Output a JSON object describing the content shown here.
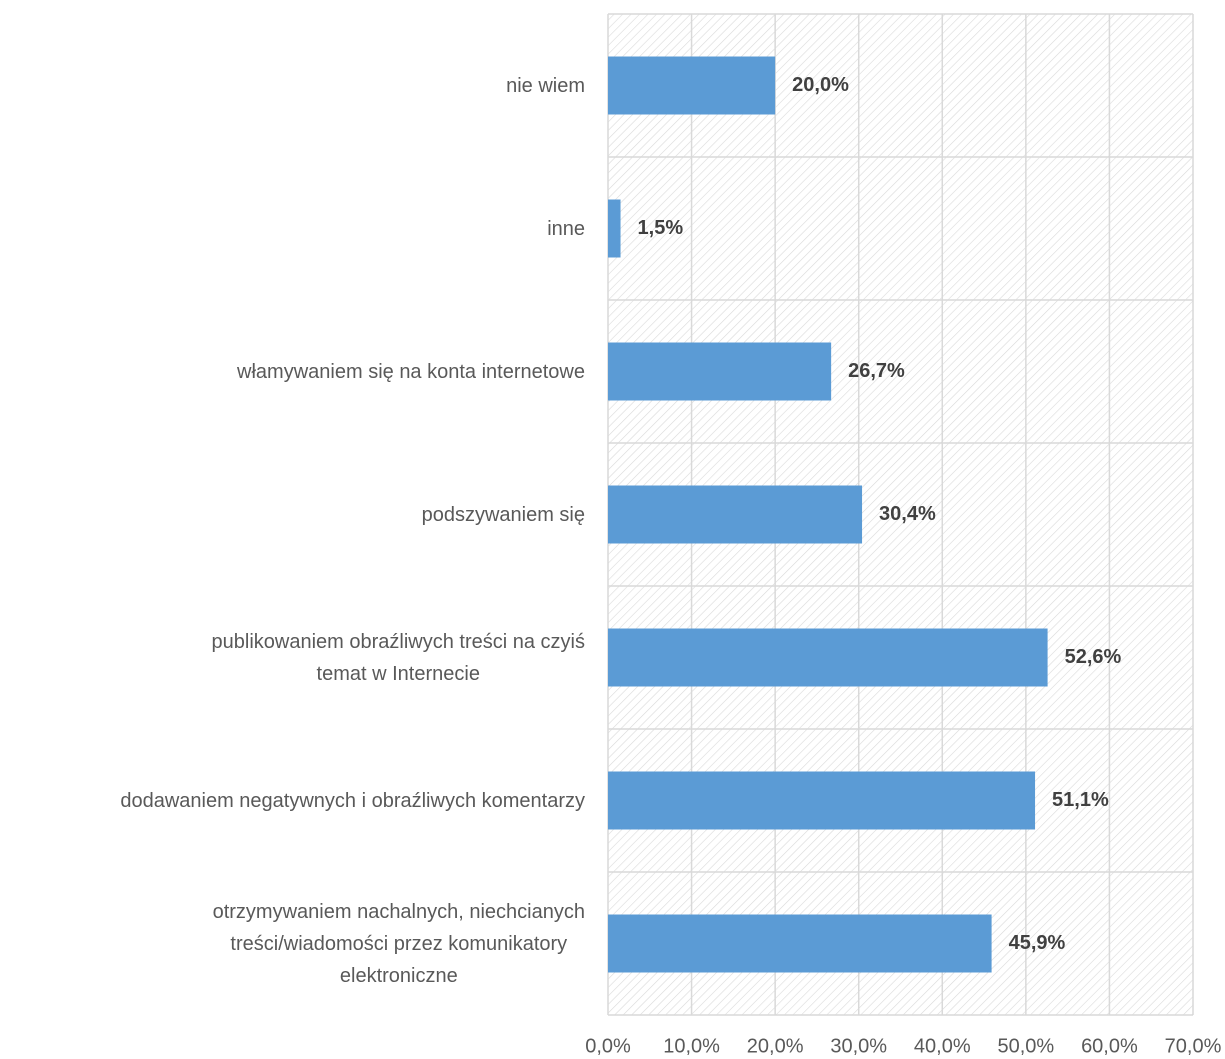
{
  "chart_data": {
    "type": "bar",
    "orientation": "horizontal",
    "categories": [
      "nie wiem",
      "inne",
      "włamywaniem się na konta internetowe",
      "podszywaniem się",
      "publikowaniem obraźliwych treści na czyiś\ntemat w Internecie",
      "dodawaniem negatywnych i obraźliwych komentarzy",
      "otrzymywaniem nachalnych, niechcianych\ntreści/wiadomości przez komunikatory\nelektroniczne"
    ],
    "values": [
      20.0,
      1.5,
      26.7,
      30.4,
      52.6,
      51.1,
      45.9
    ],
    "value_labels": [
      "20,0%",
      "1,5%",
      "26,7%",
      "30,4%",
      "52,6%",
      "51,1%",
      "45,9%"
    ],
    "color": "#5b9bd5",
    "xlim": [
      0,
      70
    ],
    "xticks": [
      {
        "value": 0,
        "label": "0,0%"
      },
      {
        "value": 10,
        "label": "10,0%"
      },
      {
        "value": 20,
        "label": "20,0%"
      },
      {
        "value": 30,
        "label": "30,0%"
      },
      {
        "value": 40,
        "label": "40,0%"
      },
      {
        "value": 50,
        "label": "50,0%"
      },
      {
        "value": 60,
        "label": "60,0%"
      },
      {
        "value": 70,
        "label": "70,0%"
      }
    ],
    "grid": true
  }
}
